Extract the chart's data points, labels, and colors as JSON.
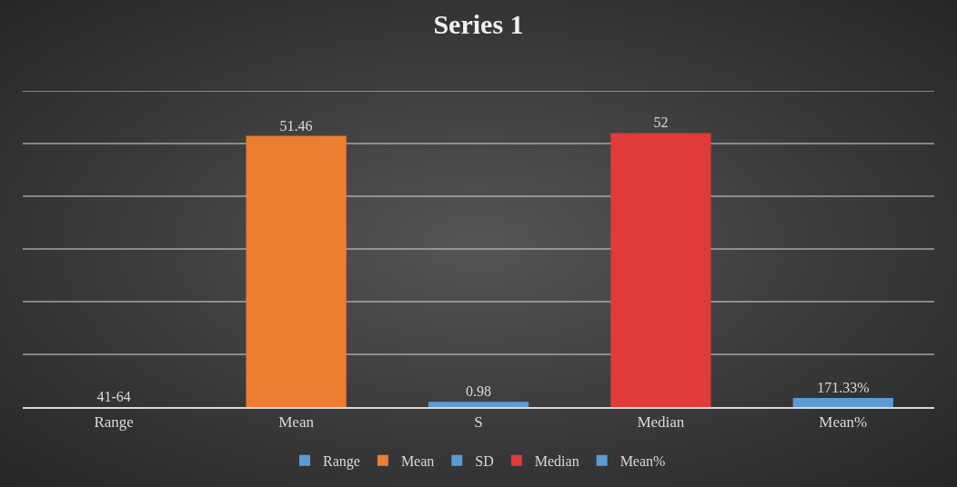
{
  "chart_data": {
    "type": "bar",
    "title": "Series 1",
    "categories": [
      "Range",
      "Mean",
      "S",
      "Median",
      "Mean%"
    ],
    "series": [
      {
        "name": "Range",
        "color": "#5b9bd5",
        "values": [
          0,
          null,
          null,
          null,
          null
        ],
        "value_labels": [
          "41-64",
          null,
          null,
          null,
          null
        ]
      },
      {
        "name": "Mean",
        "color": "#ed7d31",
        "values": [
          null,
          51.46,
          null,
          null,
          null
        ],
        "value_labels": [
          null,
          "51.46",
          null,
          null,
          null
        ]
      },
      {
        "name": "SD",
        "color": "#5b9bd5",
        "values": [
          null,
          null,
          0.98,
          null,
          null
        ],
        "value_labels": [
          null,
          null,
          "0.98",
          null,
          null
        ]
      },
      {
        "name": "Median",
        "color": "#e03a3a",
        "values": [
          null,
          null,
          null,
          52,
          null
        ],
        "value_labels": [
          null,
          null,
          null,
          "52",
          null
        ]
      },
      {
        "name": "Mean%",
        "color": "#5b9bd5",
        "values": [
          null,
          null,
          null,
          null,
          1.7133
        ],
        "value_labels": [
          null,
          null,
          null,
          null,
          "171.33%"
        ]
      }
    ],
    "ylim": [
      0,
      60
    ],
    "yticks": [
      {
        "value": 0,
        "label": null
      },
      {
        "value": 10,
        "label": null
      },
      {
        "value": 20,
        "label": null
      },
      {
        "value": 30,
        "label": null
      },
      {
        "value": 40,
        "label": null
      },
      {
        "value": 50,
        "label": null
      },
      {
        "value": 60,
        "label": null
      }
    ],
    "tick_labels": "x",
    "grid": "y",
    "legend": "bottom"
  }
}
